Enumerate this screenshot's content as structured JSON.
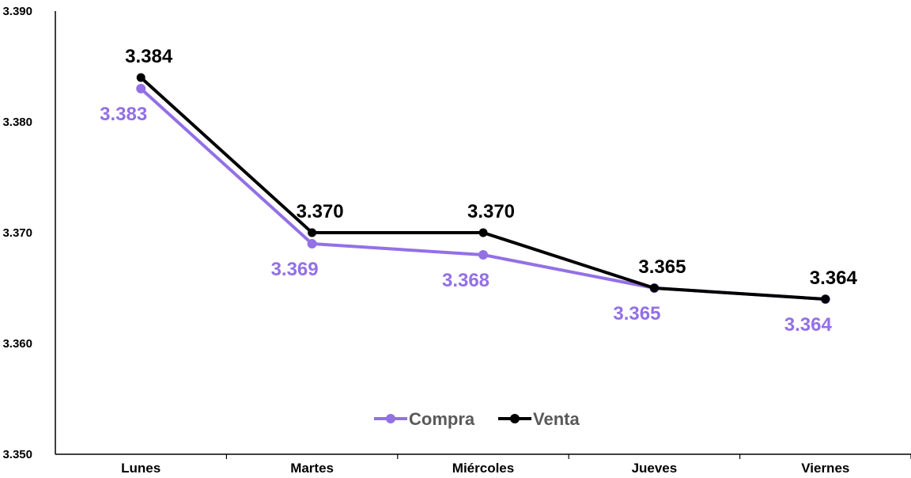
{
  "chart_data": {
    "type": "line",
    "categories": [
      "Lunes",
      "Martes",
      "Miércoles",
      "Jueves",
      "Viernes"
    ],
    "series": [
      {
        "name": "Compra",
        "values": [
          3.383,
          3.369,
          3.368,
          3.365,
          3.364
        ],
        "labels": [
          "3.383",
          "3.369",
          "3.368",
          "3.365",
          "3.364"
        ],
        "color": "#9370E6"
      },
      {
        "name": "Venta",
        "values": [
          3.384,
          3.37,
          3.37,
          3.365,
          3.364
        ],
        "labels": [
          "3.384",
          "3.370",
          "3.370",
          "3.365",
          "3.364"
        ],
        "color": "#000000"
      }
    ],
    "ylim": [
      3.35,
      3.39
    ],
    "yticks": [
      "3.350",
      "3.360",
      "3.370",
      "3.380",
      "3.390"
    ],
    "grid": false,
    "legend": "bottom-center"
  }
}
